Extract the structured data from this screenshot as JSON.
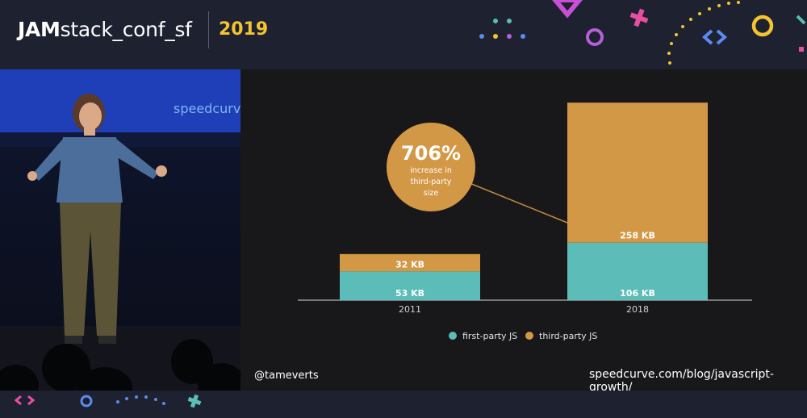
{
  "header": {
    "brand_bold": "JAM",
    "brand_rest": "stack_conf_sf",
    "year": "2019"
  },
  "video": {
    "backdrop_logo": "speedcurve"
  },
  "slide": {
    "handle": "@tameverts",
    "url": "speedcurve.com/blog/javascript-growth/",
    "callout_value": "706%",
    "callout_text_1": "increase in",
    "callout_text_2": "third-party",
    "callout_text_3": "size"
  },
  "chart_data": {
    "type": "bar",
    "stacked": true,
    "categories": [
      "2011",
      "2018"
    ],
    "series": [
      {
        "name": "first-party JS",
        "values": [
          53,
          106
        ],
        "labels": [
          "53 KB",
          "106 KB"
        ],
        "color": "#5bbcb8"
      },
      {
        "name": "third-party JS",
        "values": [
          32,
          258
        ],
        "labels": [
          "32 KB",
          "258 KB"
        ],
        "color": "#d39846"
      }
    ],
    "legend": "bottom",
    "grid": false
  },
  "colors": {
    "accent_yellow": "#f4c430",
    "callout": "#d39846",
    "teal": "#5bbcb8"
  }
}
